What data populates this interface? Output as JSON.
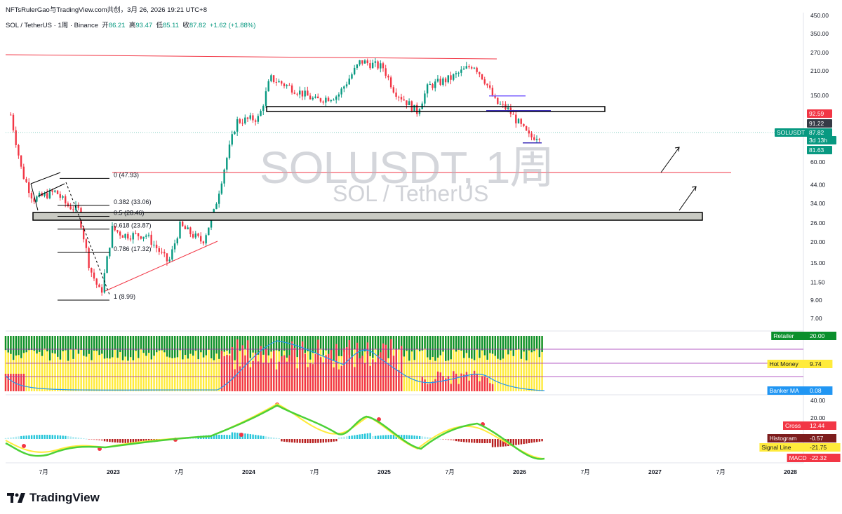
{
  "header": {
    "publisher": "NFTsRulerGao与TradingView.com共创，3月 26, 2026 19:21 UTC+8",
    "symbol_line": "SOL / TetherUS · 1周 · Binance",
    "open_label": "开",
    "open": "86.21",
    "high_label": "高",
    "high": "93.47",
    "low_label": "低",
    "low": "85.11",
    "close_label": "收",
    "close": "87.82",
    "change": "+1.62 (+1.88%)"
  },
  "watermark": {
    "title": "SOLUSDT, 1周",
    "subtitle": "SOL / TetherUS"
  },
  "footer": {
    "brand": "TradingView"
  },
  "colors": {
    "up": "#089981",
    "down": "#f23645",
    "fib": "#f23645",
    "box": "#c9cac3",
    "macd_line": "#4cd137",
    "signal": "#ffeb3b",
    "hot_money": "#f23645",
    "retailer": "#0b8f2c",
    "banker": "#2196f3"
  },
  "chart_data": [
    {
      "type": "candlestick",
      "title": "SOLUSDT, 1周",
      "scale": "log",
      "ylim": [
        6,
        450
      ],
      "y_ticks": [
        "450.00",
        "350.00",
        "270.00",
        "210.00",
        "150.00",
        "60.00",
        "44.00",
        "34.00",
        "26.00",
        "20.00",
        "15.00",
        "11.50",
        "9.00",
        "7.00"
      ],
      "x_ticks": [
        "7月",
        "2023",
        "7月",
        "2024",
        "7月",
        "2025",
        "7月",
        "2026",
        "7月",
        "2027",
        "7月",
        "2028"
      ],
      "price_labels": [
        {
          "text": "92.59",
          "color": "#f23645"
        },
        {
          "text": "91.22",
          "color": "#363a45"
        },
        {
          "text": "SOLUSDT",
          "color": "#089981"
        },
        {
          "text": "87.82",
          "color": "#089981"
        },
        {
          "text": "3d 13h",
          "color": "#089981"
        },
        {
          "text": "81.63",
          "color": "#089981"
        }
      ],
      "close_path": [
        {
          "t": "2022-04",
          "v": 115
        },
        {
          "t": "2022-05",
          "v": 52
        },
        {
          "t": "2022-06",
          "v": 36
        },
        {
          "t": "2022-08",
          "v": 40
        },
        {
          "t": "2022-09",
          "v": 33
        },
        {
          "t": "2022-10",
          "v": 31
        },
        {
          "t": "2022-11",
          "v": 14
        },
        {
          "t": "2022-12",
          "v": 9.7
        },
        {
          "t": "2023-01",
          "v": 24
        },
        {
          "t": "2023-02",
          "v": 22
        },
        {
          "t": "2023-04",
          "v": 22
        },
        {
          "t": "2023-06",
          "v": 15
        },
        {
          "t": "2023-07",
          "v": 25
        },
        {
          "t": "2023-09",
          "v": 20
        },
        {
          "t": "2023-10",
          "v": 30
        },
        {
          "t": "2023-11",
          "v": 58
        },
        {
          "t": "2023-12",
          "v": 105
        },
        {
          "t": "2024-02",
          "v": 110
        },
        {
          "t": "2024-03",
          "v": 190
        },
        {
          "t": "2024-05",
          "v": 165
        },
        {
          "t": "2024-07",
          "v": 140
        },
        {
          "t": "2024-09",
          "v": 150
        },
        {
          "t": "2024-11",
          "v": 240
        },
        {
          "t": "2025-01",
          "v": 220
        },
        {
          "t": "2025-02",
          "v": 160
        },
        {
          "t": "2025-04",
          "v": 120
        },
        {
          "t": "2025-05",
          "v": 170
        },
        {
          "t": "2025-07",
          "v": 190
        },
        {
          "t": "2025-09",
          "v": 230
        },
        {
          "t": "2025-10",
          "v": 185
        },
        {
          "t": "2025-11",
          "v": 135
        },
        {
          "t": "2025-12",
          "v": 125
        },
        {
          "t": "2026-02",
          "v": 84
        },
        {
          "t": "2026-03",
          "v": 87.82
        }
      ],
      "fibonacci": [
        {
          "label": "0 (47.93)",
          "value": 47.93
        },
        {
          "label": "0.382 (33.06)",
          "value": 33.06
        },
        {
          "label": "0.5 (28.46)",
          "value": 28.46
        },
        {
          "label": "0.618 (23.87)",
          "value": 23.87
        },
        {
          "label": "0.786 (17.32)",
          "value": 17.32
        },
        {
          "label": "1 (8.99)",
          "value": 8.99
        }
      ]
    },
    {
      "type": "histogram",
      "title": "Banker / Hot Money / Retailer",
      "legend": [
        {
          "name": "Retailer",
          "value": "20.00",
          "color": "#0b8f2c"
        },
        {
          "name": "Hot Money",
          "value": "9.74",
          "color": "#ffeb3b"
        },
        {
          "name": "Banker MA",
          "value": "0.08",
          "color": "#2196f3"
        }
      ]
    },
    {
      "type": "line",
      "title": "MACD",
      "y_ticks": [
        "40.00",
        "20.00"
      ],
      "legend": [
        {
          "name": "Cross",
          "value": "12.44",
          "color": "#f23645"
        },
        {
          "name": "Histogram",
          "value": "-0.57",
          "color": "#7d1d1d"
        },
        {
          "name": "Signal Line",
          "value": "-21.75",
          "color": "#ffeb3b"
        },
        {
          "name": "MACD",
          "value": "-22.32",
          "color": "#f23645"
        }
      ]
    }
  ]
}
